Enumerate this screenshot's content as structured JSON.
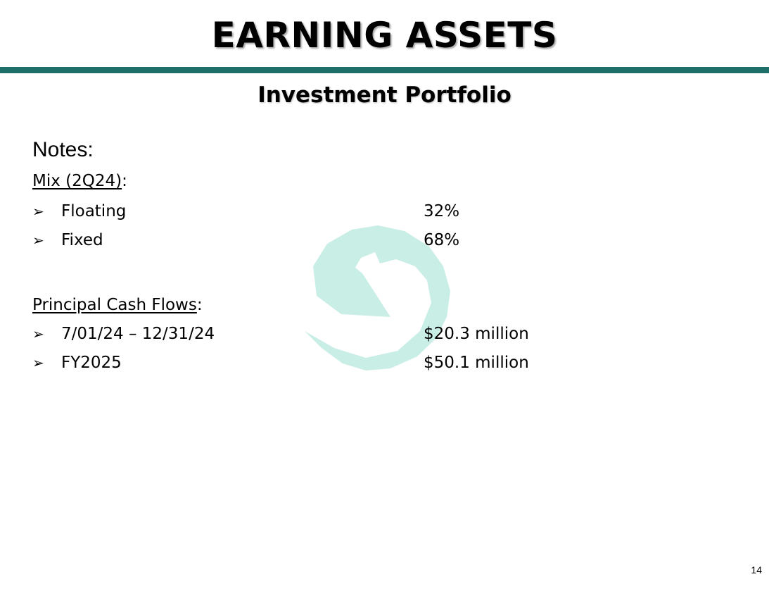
{
  "slide": {
    "title": "EARNING ASSETS",
    "subtitle": "Investment Portfolio",
    "page_number": "14",
    "accent_color": "#1e6f6a",
    "watermark_icon": "circular-arrow-icon",
    "watermark_color": "#c9eee6"
  },
  "notes": {
    "heading": "Notes:",
    "mix": {
      "label": "Mix (2Q24)",
      "suffix": ":",
      "bullet_icon": "arrow-bullet-icon",
      "items": [
        {
          "bullet": "➢",
          "label": "Floating",
          "value": "32%"
        },
        {
          "bullet": "➢",
          "label": "Fixed",
          "value": "68%"
        }
      ]
    },
    "cash_flows": {
      "label": "Principal Cash Flows",
      "suffix": ":",
      "bullet_icon": "arrow-bullet-icon",
      "items": [
        {
          "bullet": "➢",
          "label": "7/01/24 – 12/31/24",
          "value": "$20.3 million"
        },
        {
          "bullet": "➢",
          "label": "FY2025",
          "value": "$50.1 million"
        }
      ]
    }
  }
}
